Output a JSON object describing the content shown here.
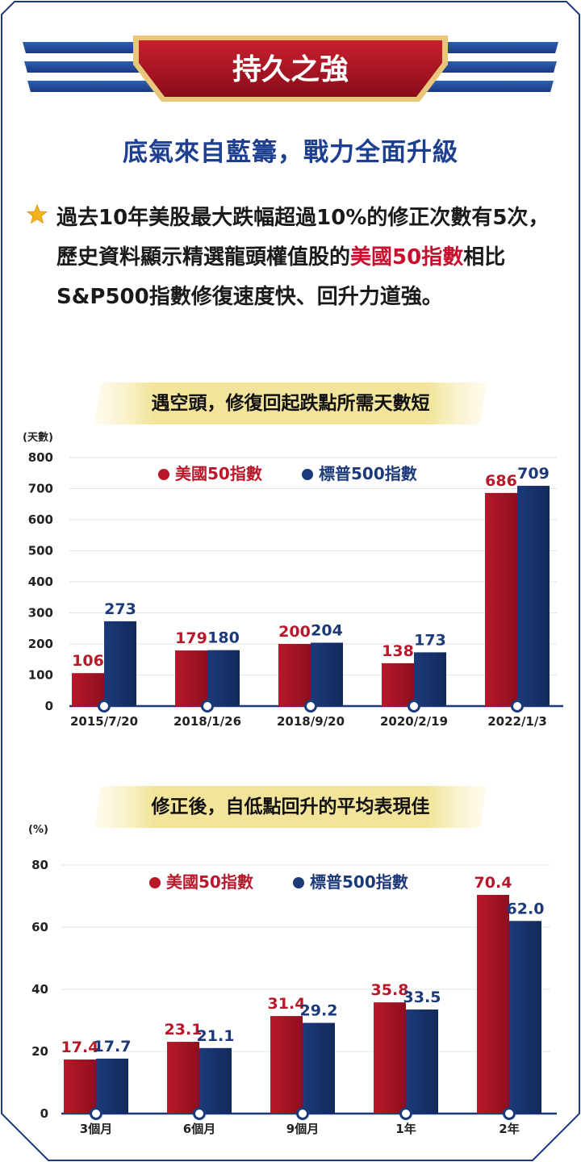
{
  "header": {
    "badge_title": "持久之強",
    "subtitle": "底氣來自藍籌，戰力全面升級"
  },
  "bullet": {
    "icon": "star-icon",
    "text_part1": "過去10年美股最大跌幅超過10%的修正次數有5次，歷史資料顯示精選龍頭權值股的",
    "text_highlight": "美國50指數",
    "text_part2": "相比S&P500指數修復速度快、回升力道強。"
  },
  "colors": {
    "red": "#b8182a",
    "navy": "#1c3a7a",
    "title_blue": "#1d3f8f",
    "banner_red": "#a5101f",
    "gold": "#f2e49a"
  },
  "chart_data": [
    {
      "type": "bar",
      "title": "遇空頭，修復回起跌點所需天數短",
      "unit_label": "(天數)",
      "categories": [
        "2015/7/20",
        "2018/1/26",
        "2018/9/20",
        "2020/2/19",
        "2022/1/3"
      ],
      "series": [
        {
          "name": "美國50指數",
          "values": [
            106,
            179,
            200,
            138,
            686
          ],
          "color": "#b8182a"
        },
        {
          "name": "標普500指數",
          "values": [
            273,
            180,
            204,
            173,
            709
          ],
          "color": "#1c3a7a"
        }
      ],
      "value_labels": [
        [
          "106",
          "179",
          "200",
          "138",
          "686"
        ],
        [
          "273",
          "180",
          "204",
          "173",
          "709"
        ]
      ],
      "ylim": [
        0,
        800
      ],
      "yticks": [
        "0",
        "100",
        "200",
        "300",
        "400",
        "500",
        "600",
        "700",
        "800"
      ],
      "legend": "top-center",
      "grid": true
    },
    {
      "type": "bar",
      "title": "修正後，自低點回升的平均表現佳",
      "unit_label": "(%)",
      "categories": [
        "3個月",
        "6個月",
        "9個月",
        "1年",
        "2年"
      ],
      "series": [
        {
          "name": "美國50指數",
          "values": [
            17.4,
            23.1,
            31.4,
            35.8,
            70.4
          ],
          "color": "#b8182a"
        },
        {
          "name": "標普500指數",
          "values": [
            17.7,
            21.1,
            29.2,
            33.5,
            62.0
          ],
          "color": "#1c3a7a"
        }
      ],
      "value_labels": [
        [
          "17.4",
          "23.1",
          "31.4",
          "35.8",
          "70.4"
        ],
        [
          "17.7",
          "21.1",
          "29.2",
          "33.5",
          "62.0"
        ]
      ],
      "ylim": [
        0,
        80
      ],
      "yticks": [
        "0",
        "20",
        "40",
        "60",
        "80"
      ],
      "legend": "top-center",
      "grid": true
    }
  ]
}
